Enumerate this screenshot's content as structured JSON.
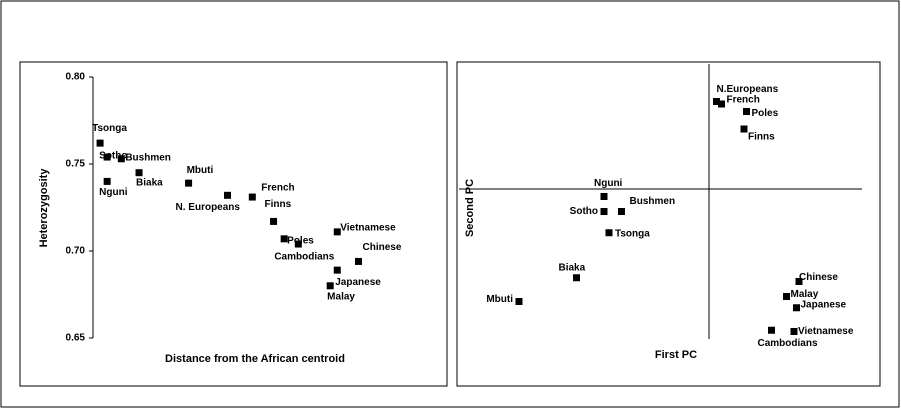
{
  "chart_data": [
    {
      "type": "scatter",
      "y_label": "Heterozygosity",
      "x_label": "Distance from the African centroid",
      "xlim": [
        0,
        1
      ],
      "ylim": [
        0.65,
        0.8
      ],
      "yticks": [
        {
          "value": 0.65,
          "label": "0.65"
        },
        {
          "value": 0.7,
          "label": "0.70"
        },
        {
          "value": 0.75,
          "label": "0.75"
        },
        {
          "value": 0.8,
          "label": "0.80"
        }
      ],
      "color": "#000000",
      "labels": [
        "Tsonga",
        "Sotho",
        "Bushmen",
        "Nguni",
        "Biaka",
        "Mbuti",
        "N. Europeans",
        "French",
        "Finns",
        "Poles",
        "Cambodians",
        "Vietnamese",
        "Chinese",
        "Japanese",
        "Malay"
      ],
      "x": [
        0.02,
        0.04,
        0.08,
        0.04,
        0.13,
        0.27,
        0.38,
        0.45,
        0.51,
        0.54,
        0.58,
        0.69,
        0.75,
        0.69,
        0.67
      ],
      "values": [
        0.762,
        0.754,
        0.753,
        0.74,
        0.745,
        0.739,
        0.732,
        0.731,
        0.717,
        0.707,
        0.704,
        0.711,
        0.694,
        0.689,
        0.68
      ]
    },
    {
      "type": "scatter",
      "y_label": "Second PC",
      "x_label": "First PC",
      "xlim": [
        -1,
        0.6
      ],
      "ylim": [
        -1.2,
        1
      ],
      "color": "#000000",
      "labels": [
        "N.Europeans",
        "French",
        "Poles",
        "Finns",
        "Nguni",
        "Sotho",
        "Bushmen",
        "Tsonga",
        "Biaka",
        "Mbuti",
        "Chinese",
        "Malay",
        "Japanese",
        "Cambodians",
        "Vietnamese"
      ],
      "x": [
        0.03,
        0.05,
        0.15,
        0.14,
        -0.42,
        -0.42,
        -0.35,
        -0.4,
        -0.53,
        -0.76,
        0.36,
        0.31,
        0.35,
        0.25,
        0.34
      ],
      "values": [
        0.7,
        0.68,
        0.62,
        0.48,
        -0.06,
        -0.18,
        -0.18,
        -0.35,
        -0.71,
        -0.9,
        -0.74,
        -0.86,
        -0.95,
        -1.13,
        -1.14
      ]
    }
  ]
}
